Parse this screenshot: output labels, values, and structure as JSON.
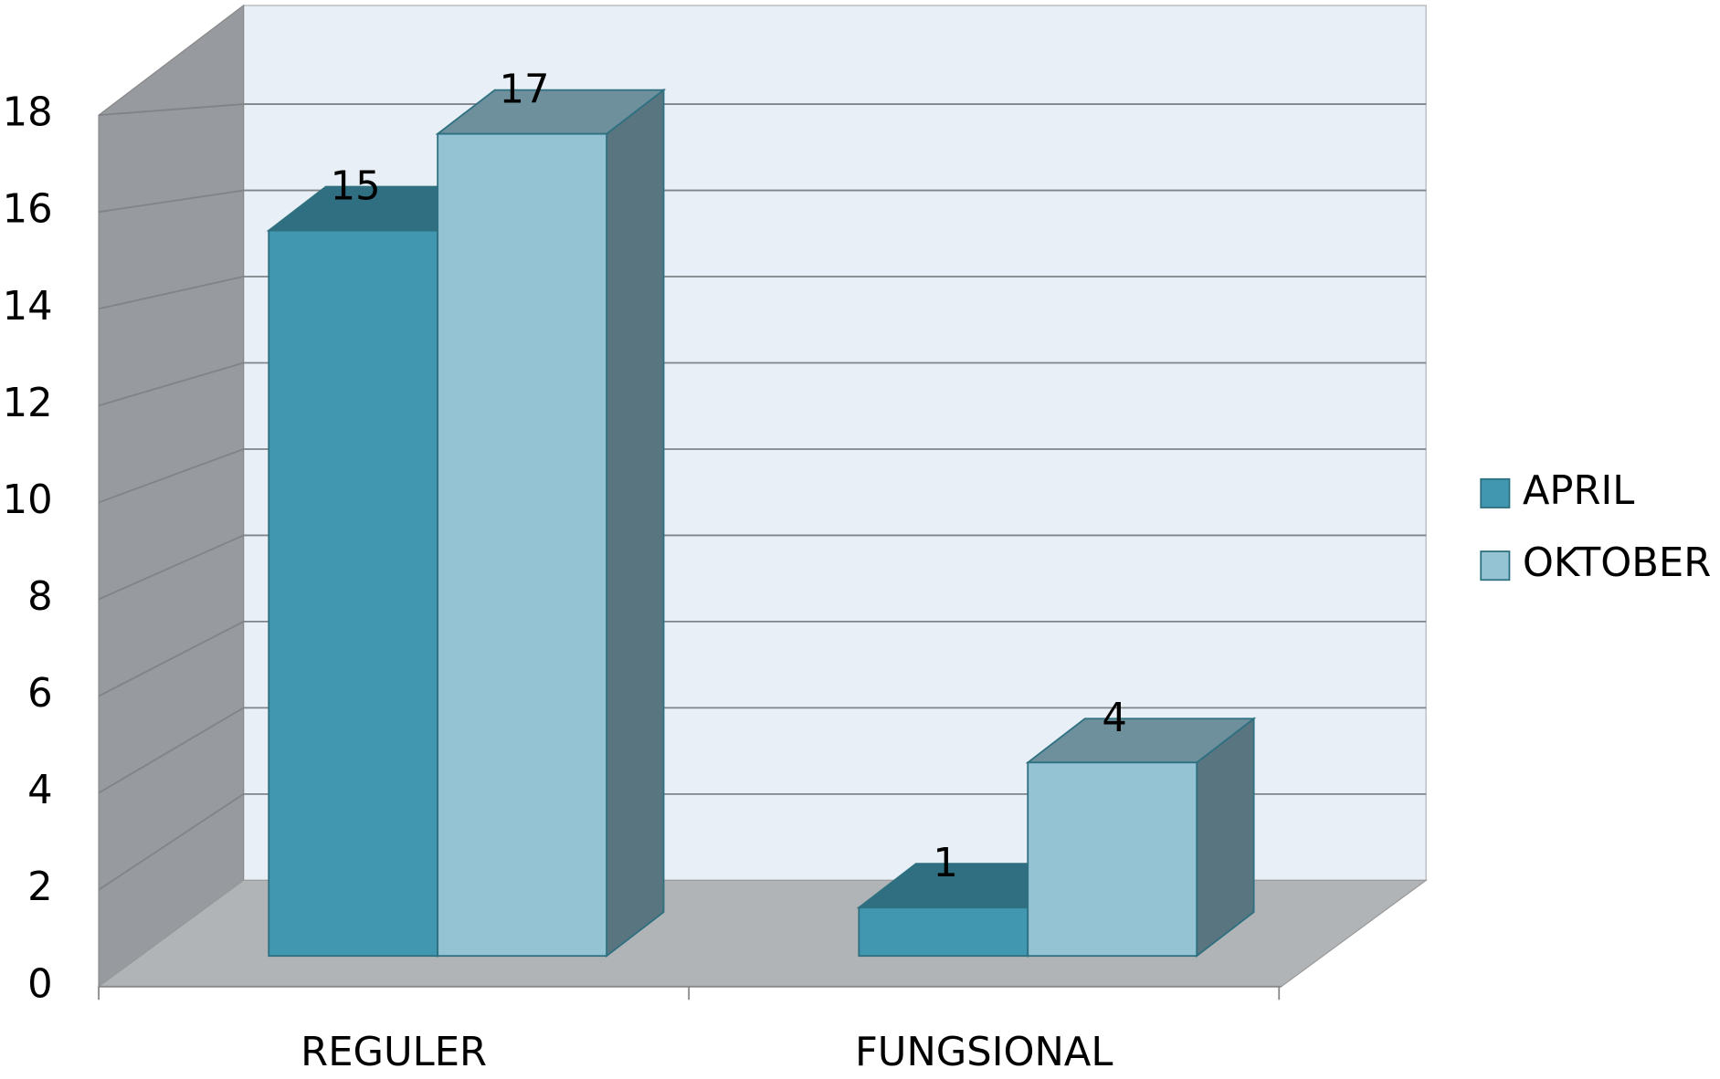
{
  "chart_data": {
    "type": "bar3d",
    "categories": [
      "REGULER",
      "FUNGSIONAL"
    ],
    "series": [
      {
        "name": "APRIL",
        "color": "#4196b0",
        "values": [
          15,
          1
        ]
      },
      {
        "name": "OKTOBER",
        "color": "#94c3d4",
        "values": [
          17,
          4
        ]
      }
    ],
    "ylim": [
      0,
      18
    ],
    "yticks": [
      0,
      2,
      4,
      6,
      8,
      10,
      12,
      14,
      16,
      18
    ],
    "grid": true,
    "legend": "right"
  }
}
